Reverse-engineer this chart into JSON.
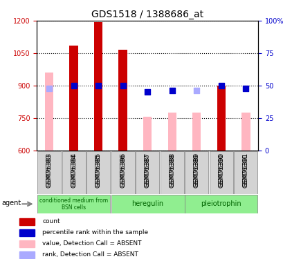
{
  "title": "GDS1518 / 1388686_at",
  "samples": [
    "GSM76383",
    "GSM76384",
    "GSM76385",
    "GSM76386",
    "GSM76387",
    "GSM76388",
    "GSM76389",
    "GSM76390",
    "GSM76391"
  ],
  "bar_values": [
    null,
    1085,
    1195,
    1065,
    null,
    null,
    null,
    900,
    null
  ],
  "bar_absent_values": [
    960,
    null,
    null,
    null,
    755,
    775,
    775,
    null,
    775
  ],
  "percentile_values": [
    null,
    50,
    50,
    50,
    45,
    46,
    null,
    50,
    48
  ],
  "percentile_absent_values": [
    48,
    null,
    null,
    null,
    null,
    null,
    46,
    null,
    null
  ],
  "ylim_left": [
    600,
    1200
  ],
  "ylim_right": [
    0,
    100
  ],
  "yticks_left": [
    600,
    750,
    900,
    1050,
    1200
  ],
  "yticks_right": [
    0,
    25,
    50,
    75,
    100
  ],
  "ytick_labels_right": [
    "0",
    "25",
    "50",
    "75",
    "100%"
  ],
  "bar_color": "#cc0000",
  "bar_absent_color": "#ffb6c1",
  "dot_color": "#0000cc",
  "dot_absent_color": "#aaaaff",
  "groups": [
    {
      "label": "conditioned medium from\nBSN cells",
      "start": 0,
      "end": 2,
      "color": "#90EE90"
    },
    {
      "label": "heregulin",
      "start": 3,
      "end": 5,
      "color": "#90EE90"
    },
    {
      "label": "pleiotrophin",
      "start": 6,
      "end": 8,
      "color": "#90EE90"
    }
  ],
  "legend_items": [
    {
      "color": "#cc0000",
      "label": "count"
    },
    {
      "color": "#0000cc",
      "label": "percentile rank within the sample"
    },
    {
      "color": "#ffb6c1",
      "label": "value, Detection Call = ABSENT"
    },
    {
      "color": "#aaaaff",
      "label": "rank, Detection Call = ABSENT"
    }
  ],
  "xlabel_color": "#cc0000",
  "ylabel_left_color": "#cc0000",
  "ylabel_right_color": "#0000cc"
}
